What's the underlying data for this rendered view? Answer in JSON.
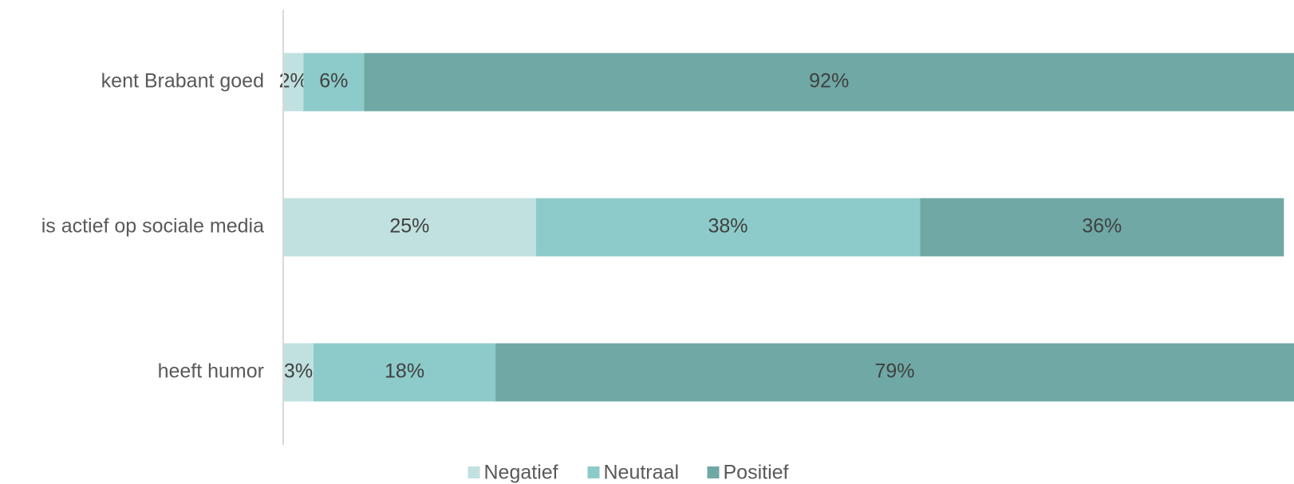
{
  "chart_data": {
    "type": "stacked_bar_horizontal",
    "categories": [
      "kent Brabant goed",
      "is actief op sociale media",
      "heeft humor"
    ],
    "series": [
      {
        "name": "Negatief",
        "color": "#c0e1e0",
        "values": [
          2,
          25,
          3
        ],
        "value_labels": [
          "2%",
          "25%",
          "3%"
        ]
      },
      {
        "name": "Neutraal",
        "color": "#8ccbc9",
        "values": [
          6,
          38,
          18
        ],
        "value_labels": [
          "6%",
          "38%",
          "18%"
        ]
      },
      {
        "name": "Positief",
        "color": "#6fa8a5",
        "values": [
          92,
          36,
          79
        ],
        "value_labels": [
          "92%",
          "36%",
          "79%"
        ]
      }
    ],
    "xlim": [
      0,
      100
    ]
  }
}
